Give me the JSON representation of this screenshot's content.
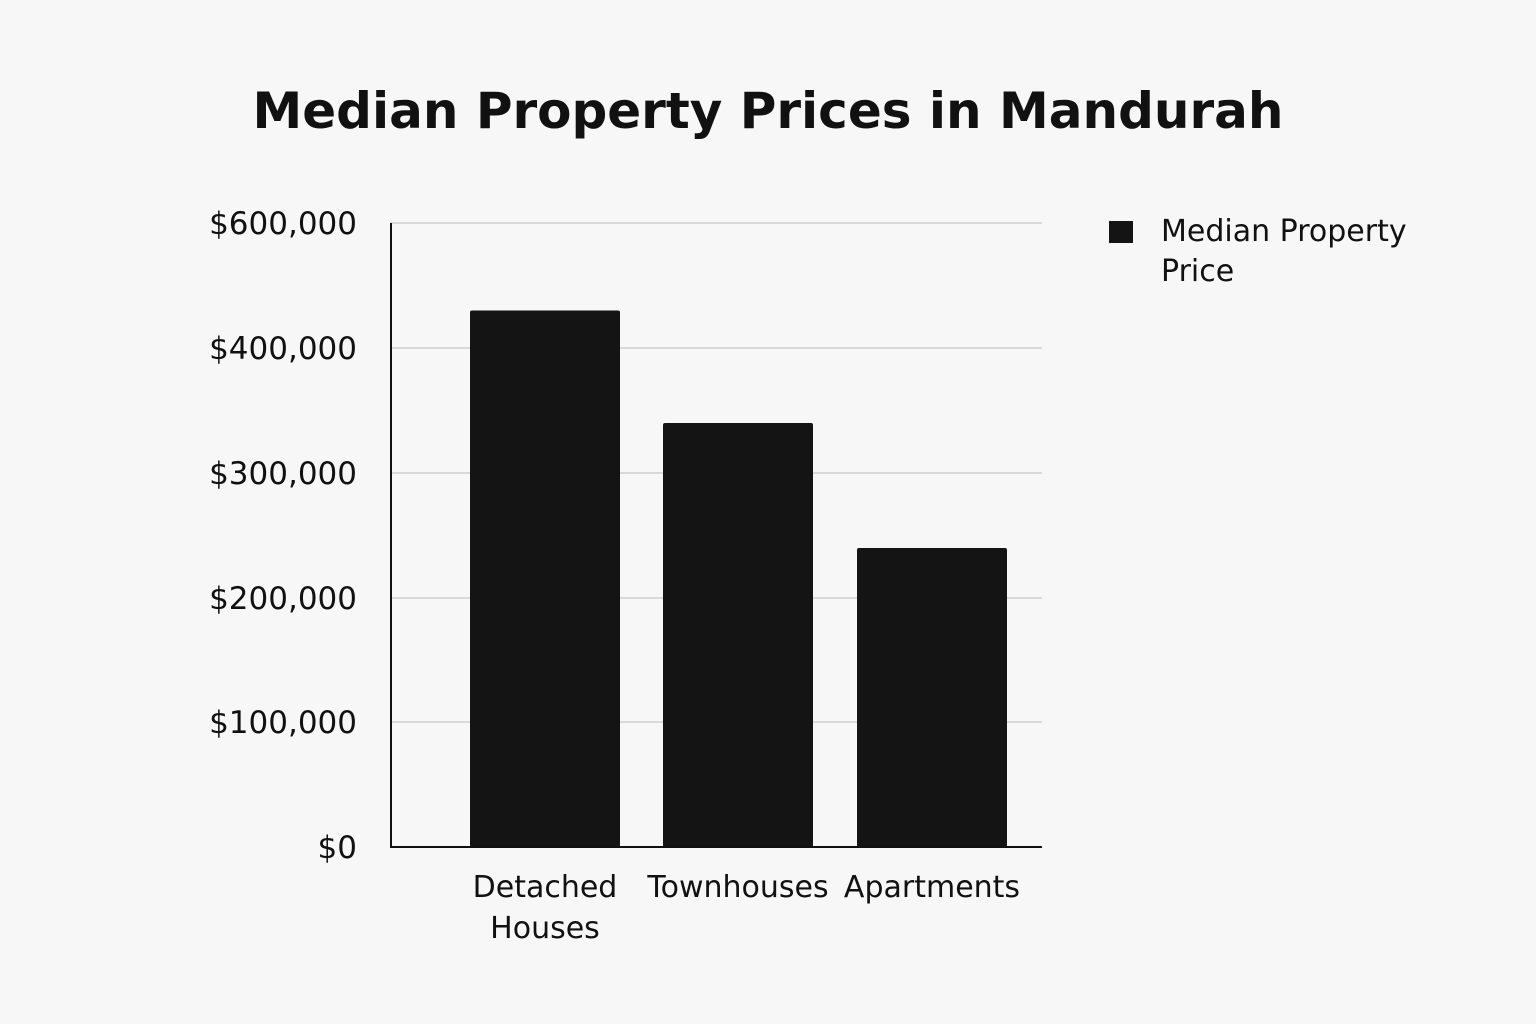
{
  "chart_data": {
    "type": "bar",
    "title": "Median Property Prices in Mandurah",
    "xlabel": "",
    "ylabel": "",
    "categories": [
      [
        "Detached",
        "Houses"
      ],
      [
        "Townhouses"
      ],
      [
        "Apartments"
      ]
    ],
    "series": [
      {
        "name": "Median Property Price",
        "legend_lines": [
          "Median Property",
          "Price"
        ],
        "values": [
          460000,
          340000,
          240000
        ],
        "color": "#141414"
      }
    ],
    "yticks": [
      {
        "value": 0,
        "label": "$0"
      },
      {
        "value": 100000,
        "label": "$100,000"
      },
      {
        "value": 200000,
        "label": "$200,000"
      },
      {
        "value": 300000,
        "label": "$300,000"
      },
      {
        "value": 400000,
        "label": "$400,000"
      },
      {
        "value": 600000,
        "label": "$600,000"
      }
    ],
    "grid": true,
    "legend_position": "top-right"
  }
}
